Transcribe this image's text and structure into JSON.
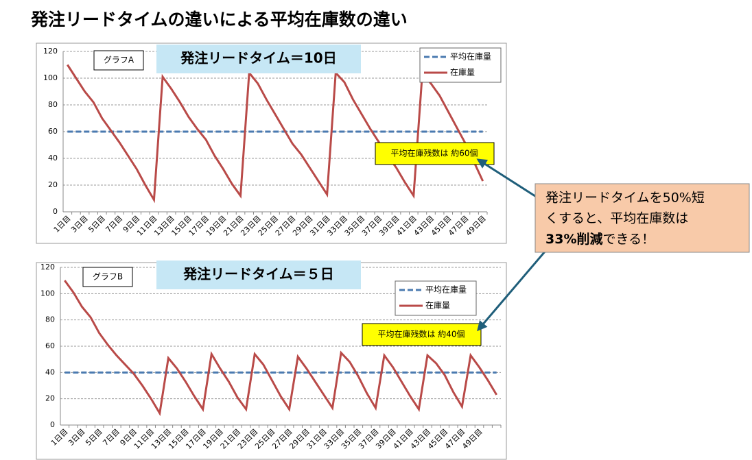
{
  "title": "発注リードタイムの違いによる平均在庫数の違い",
  "callout": {
    "lines": [
      "発注リードタイムを50%短",
      "くすると、平均在庫数は"
    ],
    "bold": "33%削減",
    "rest": "できる！"
  },
  "chart_data": [
    {
      "type": "line",
      "label": "グラフA",
      "title": "発注リードタイム＝10日",
      "annotation": "平均在庫残数は 約60個",
      "categories": [
        "1日目",
        null,
        "3日目",
        null,
        "5日目",
        null,
        "7日目",
        null,
        "9日目",
        null,
        "11日目",
        null,
        "13日目",
        null,
        "15日目",
        null,
        "17日目",
        null,
        "19日目",
        null,
        "21日目",
        null,
        "23日目",
        null,
        "25日目",
        null,
        "27日目",
        null,
        "29日目",
        null,
        "31日目",
        null,
        "33日目",
        null,
        "35日目",
        null,
        "37日目",
        null,
        "39日目",
        null,
        "41日目",
        null,
        "43日目",
        null,
        "45日目",
        null,
        "47日目",
        null,
        "49日目"
      ],
      "series": [
        {
          "name": "平均在庫量",
          "color": "#4a7ab0",
          "dashed": true,
          "values": [
            60,
            60,
            60,
            60,
            60,
            60,
            60,
            60,
            60,
            60,
            60,
            60,
            60,
            60,
            60,
            60,
            60,
            60,
            60,
            60,
            60,
            60,
            60,
            60,
            60,
            60,
            60,
            60,
            60,
            60,
            60,
            60,
            60,
            60,
            60,
            60,
            60,
            60,
            60,
            60,
            60,
            60,
            60,
            60,
            60,
            60,
            60,
            60,
            60
          ]
        },
        {
          "name": "在庫量",
          "color": "#b94a48",
          "dashed": false,
          "values": [
            110,
            100,
            90,
            82,
            70,
            61,
            52,
            42,
            32,
            20,
            9,
            101,
            92,
            82,
            71,
            62,
            54,
            42,
            32,
            21,
            12,
            104,
            96,
            84,
            73,
            62,
            51,
            43,
            33,
            23,
            13,
            104,
            97,
            84,
            73,
            62,
            52,
            42,
            33,
            22,
            12,
            103,
            96,
            87,
            75,
            63,
            51,
            37,
            23
          ]
        }
      ],
      "ylim": [
        0,
        120
      ],
      "yticks": [
        0,
        20,
        40,
        60,
        80,
        100,
        120
      ],
      "grid": true
    },
    {
      "type": "line",
      "label": "グラフB",
      "title": "発注リードタイム＝５日",
      "annotation": "平均在庫残数は 約40個",
      "categories": [
        "1日目",
        null,
        "3日目",
        null,
        "5日目",
        null,
        "7日目",
        null,
        "9日目",
        null,
        "11日目",
        null,
        "13日目",
        null,
        "15日目",
        null,
        "17日目",
        null,
        "19日目",
        null,
        "21日目",
        null,
        "23日目",
        null,
        "25日目",
        null,
        "27日目",
        null,
        "29日目",
        null,
        "31日目",
        null,
        "33日目",
        null,
        "35日目",
        null,
        "37日目",
        null,
        "39日目",
        null,
        "41日目",
        null,
        "43日目",
        null,
        "45日目",
        null,
        "47日目",
        null,
        "49日目",
        null,
        null
      ],
      "series": [
        {
          "name": "平均在庫量",
          "color": "#4a7ab0",
          "dashed": true,
          "values": [
            40,
            40,
            40,
            40,
            40,
            40,
            40,
            40,
            40,
            40,
            40,
            40,
            40,
            40,
            40,
            40,
            40,
            40,
            40,
            40,
            40,
            40,
            40,
            40,
            40,
            40,
            40,
            40,
            40,
            40,
            40,
            40,
            40,
            40,
            40,
            40,
            40,
            40,
            40,
            40,
            40,
            40,
            40,
            40,
            40,
            40,
            40,
            40,
            40,
            40,
            40
          ]
        },
        {
          "name": "在庫量",
          "color": "#b94a48",
          "dashed": false,
          "values": [
            110,
            101,
            90,
            82,
            70,
            61,
            53,
            46,
            39,
            30,
            20,
            9,
            51,
            43,
            33,
            22,
            12,
            54,
            43,
            33,
            21,
            12,
            54,
            46,
            34,
            22,
            12,
            52,
            43,
            33,
            23,
            13,
            55,
            48,
            37,
            24,
            13,
            53,
            44,
            33,
            22,
            12,
            53,
            47,
            38,
            25,
            14,
            53,
            44,
            34,
            23
          ]
        }
      ],
      "ylim": [
        0,
        120
      ],
      "yticks": [
        0,
        20,
        40,
        60,
        80,
        100,
        120
      ],
      "grid": true
    }
  ]
}
